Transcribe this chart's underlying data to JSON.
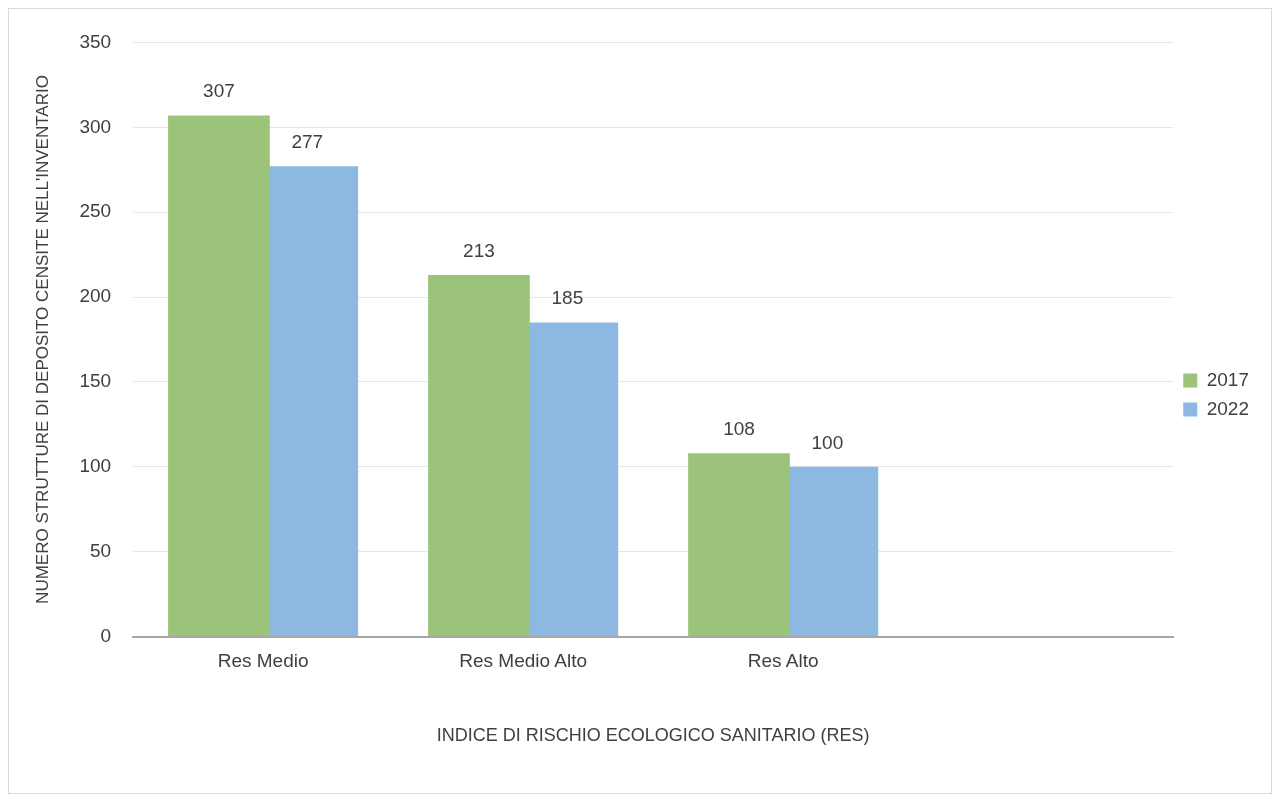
{
  "chart_data": {
    "type": "bar",
    "xlabel": "INDICE DI RISCHIO ECOLOGICO SANITARIO (RES)",
    "ylabel": "NUMERO STRUTTURE DI DEPOSITO CENSITE NELL'INVENTARIO",
    "categories": [
      "Res Medio",
      "Res Medio Alto",
      "Res Alto",
      null
    ],
    "series": [
      {
        "name": "2017",
        "color": "#9bc47a",
        "values": [
          307,
          213,
          108,
          null
        ]
      },
      {
        "name": "2022",
        "color": "#8db8e2",
        "values": [
          277,
          185,
          100,
          null
        ]
      }
    ],
    "ylim": [
      0,
      350
    ],
    "yticks": [
      0,
      50,
      100,
      150,
      200,
      250,
      300,
      350
    ],
    "grid": "y",
    "legend": "right",
    "data_labels": true
  }
}
